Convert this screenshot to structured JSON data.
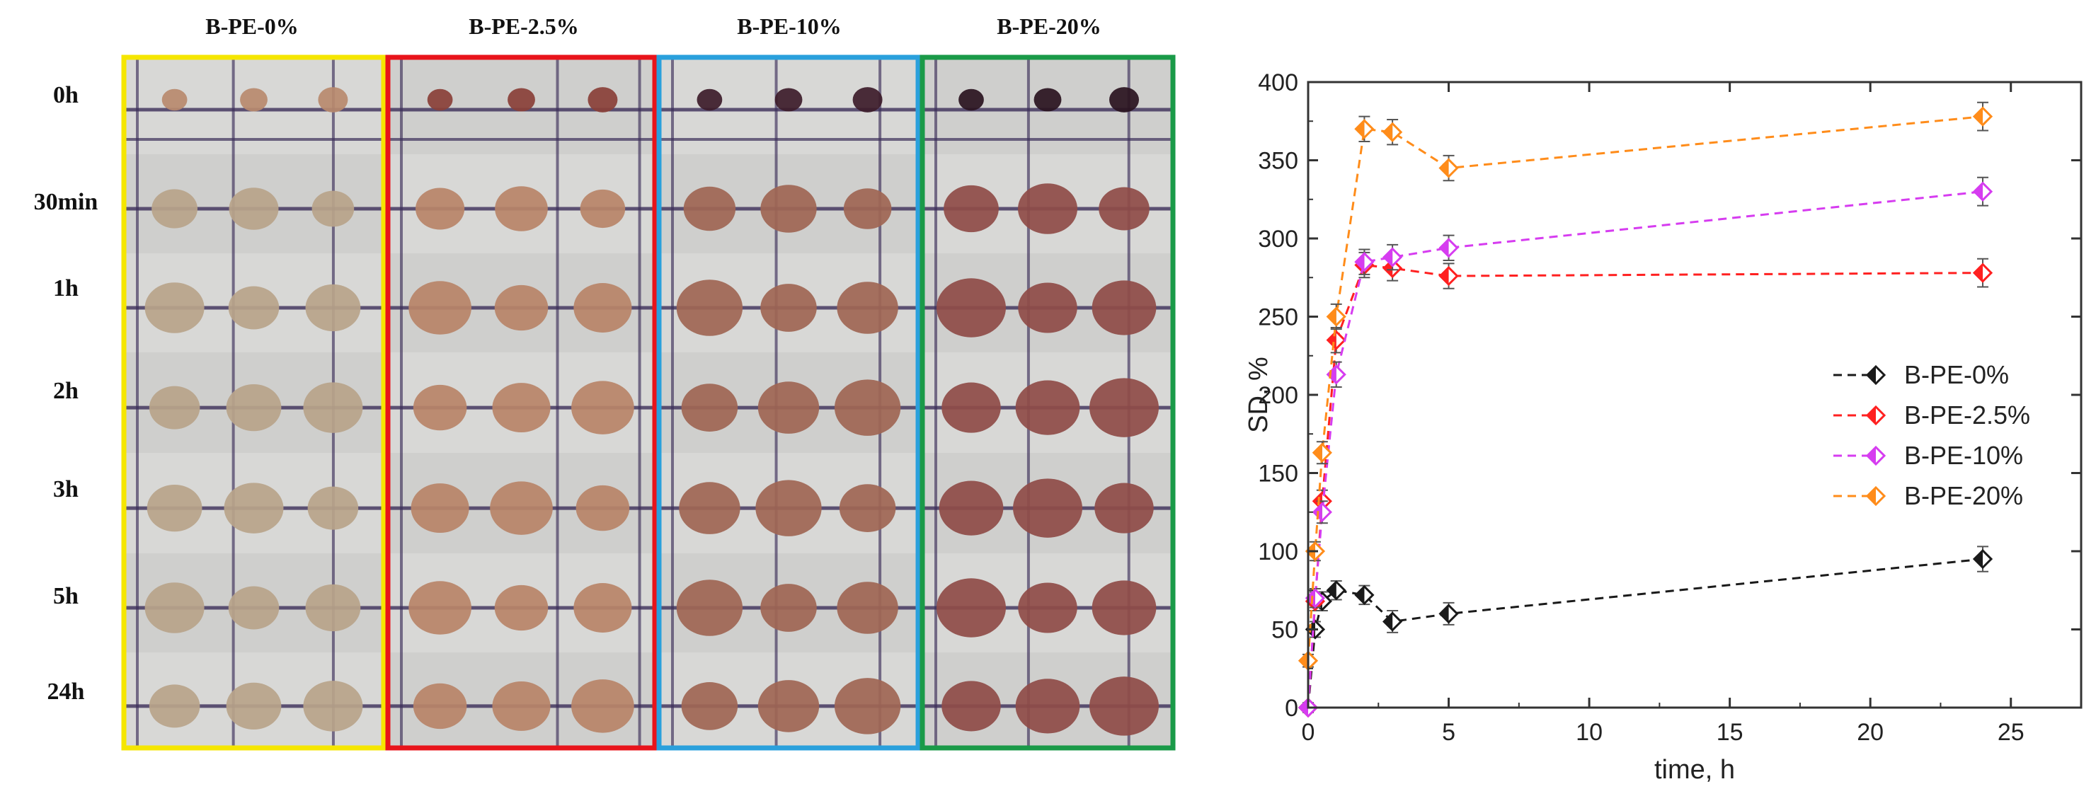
{
  "figure": {
    "columns": [
      {
        "label": "B-PE-0%",
        "frame_color": "#f5e600",
        "bead_color": "#b8a48a",
        "bead_color_0h": "#b98a6e"
      },
      {
        "label": "B-PE-2.5%",
        "frame_color": "#e8141b",
        "bead_color": "#b98468",
        "bead_color_0h": "#8a4038"
      },
      {
        "label": "B-PE-10%",
        "frame_color": "#2aa0dc",
        "bead_color": "#a06654",
        "bead_color_0h": "#3d1c2a"
      },
      {
        "label": "B-PE-20%",
        "frame_color": "#1a9a48",
        "bead_color": "#8f4c48",
        "bead_color_0h": "#2a1420"
      }
    ],
    "rows": [
      "0h",
      "30min",
      "1h",
      "2h",
      "3h",
      "5h",
      "24h"
    ]
  },
  "chart_data": {
    "type": "line",
    "xlabel": "time, h",
    "ylabel": "SD, %",
    "xlim": [
      0,
      27.5
    ],
    "ylim": [
      0,
      400
    ],
    "xticks": [
      0,
      5,
      10,
      15,
      20,
      25
    ],
    "yticks": [
      0,
      50,
      100,
      150,
      200,
      250,
      300,
      350,
      400
    ],
    "legend_position": "right-middle",
    "series": [
      {
        "name": "B-PE-0%",
        "color": "#1a1a1a",
        "x": [
          0,
          0.25,
          0.5,
          1,
          2,
          3,
          5,
          24
        ],
        "y": [
          0,
          50,
          68,
          75,
          72,
          55,
          60,
          95
        ],
        "err": [
          3,
          5,
          6,
          6,
          6,
          7,
          7,
          8
        ]
      },
      {
        "name": "B-PE-2.5%",
        "color": "#ff2020",
        "x": [
          0,
          0.25,
          0.5,
          1,
          2,
          3,
          5,
          24
        ],
        "y": [
          0,
          68,
          132,
          235,
          283,
          281,
          276,
          278
        ],
        "err": [
          3,
          6,
          7,
          8,
          8,
          8,
          8,
          9
        ]
      },
      {
        "name": "B-PE-10%",
        "color": "#d63cf0",
        "x": [
          0,
          0.25,
          0.5,
          1,
          2,
          3,
          5,
          24
        ],
        "y": [
          0,
          70,
          125,
          213,
          285,
          288,
          294,
          330
        ],
        "err": [
          3,
          6,
          7,
          8,
          8,
          8,
          8,
          9
        ]
      },
      {
        "name": "B-PE-20%",
        "color": "#ff8c1a",
        "x": [
          0,
          0.25,
          0.5,
          1,
          2,
          3,
          5,
          24
        ],
        "y": [
          30,
          100,
          163,
          250,
          370,
          368,
          345,
          378
        ],
        "err": [
          4,
          6,
          7,
          8,
          8,
          8,
          8,
          9
        ]
      }
    ]
  }
}
